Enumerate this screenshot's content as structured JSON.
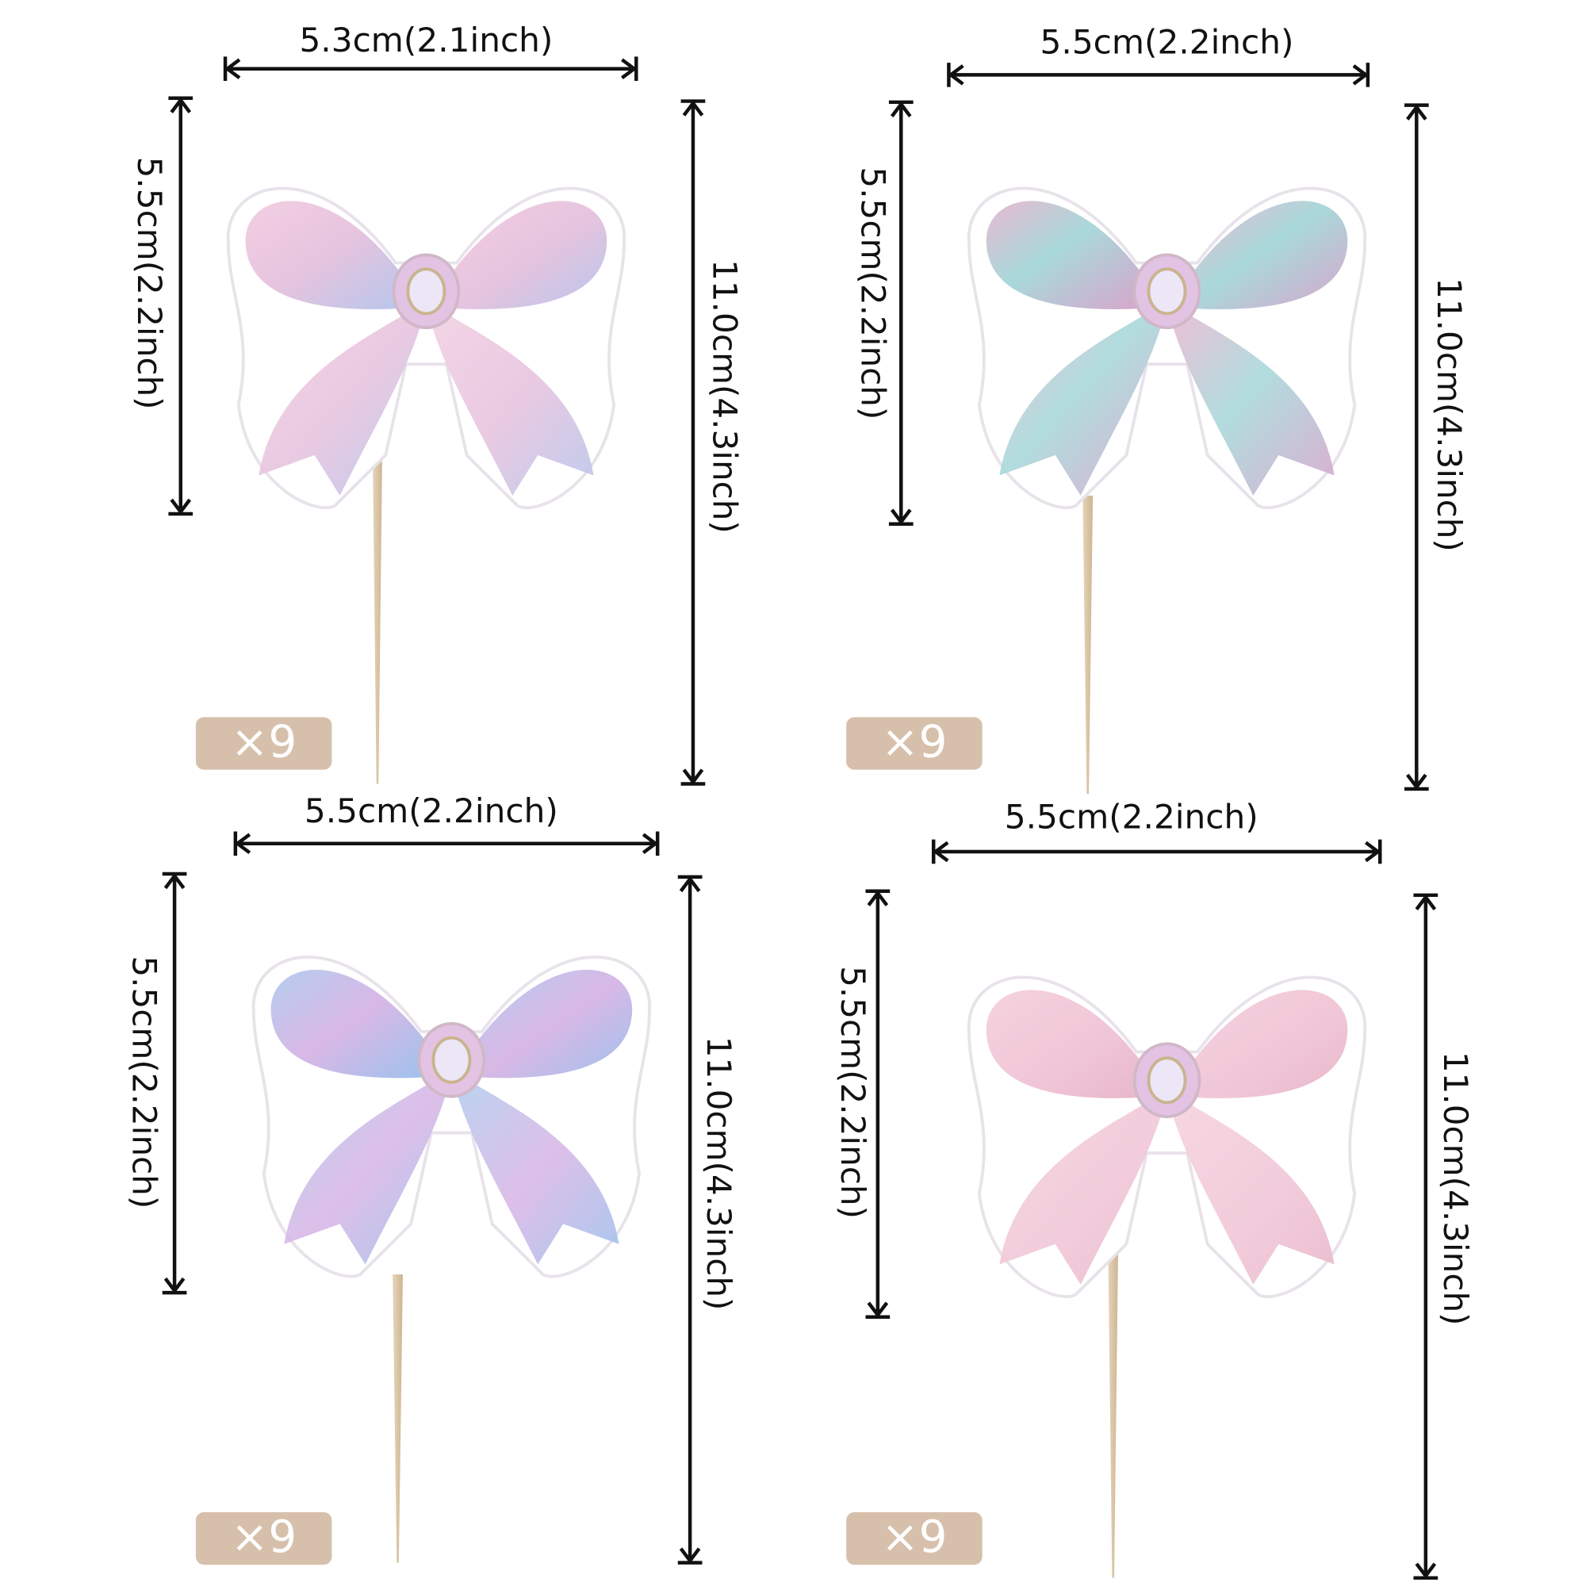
{
  "items": [
    {
      "width": "5.3cm(2.1inch)",
      "height": "5.5cm(2.2inch)",
      "total": "11.0cm(4.3inch)",
      "quantity": "×9"
    },
    {
      "width": "5.5cm(2.2inch)",
      "height": "5.5cm(2.2inch)",
      "total": "11.0cm(4.3inch)",
      "quantity": "×9"
    },
    {
      "width": "5.5cm(2.2inch)",
      "height": "5.5cm(2.2inch)",
      "total": "11.0cm(4.3inch)",
      "quantity": "×9"
    },
    {
      "width": "5.5cm(2.2inch)",
      "height": "5.5cm(2.2inch)",
      "total": "11.0cm(4.3inch)",
      "quantity": "×9"
    }
  ]
}
